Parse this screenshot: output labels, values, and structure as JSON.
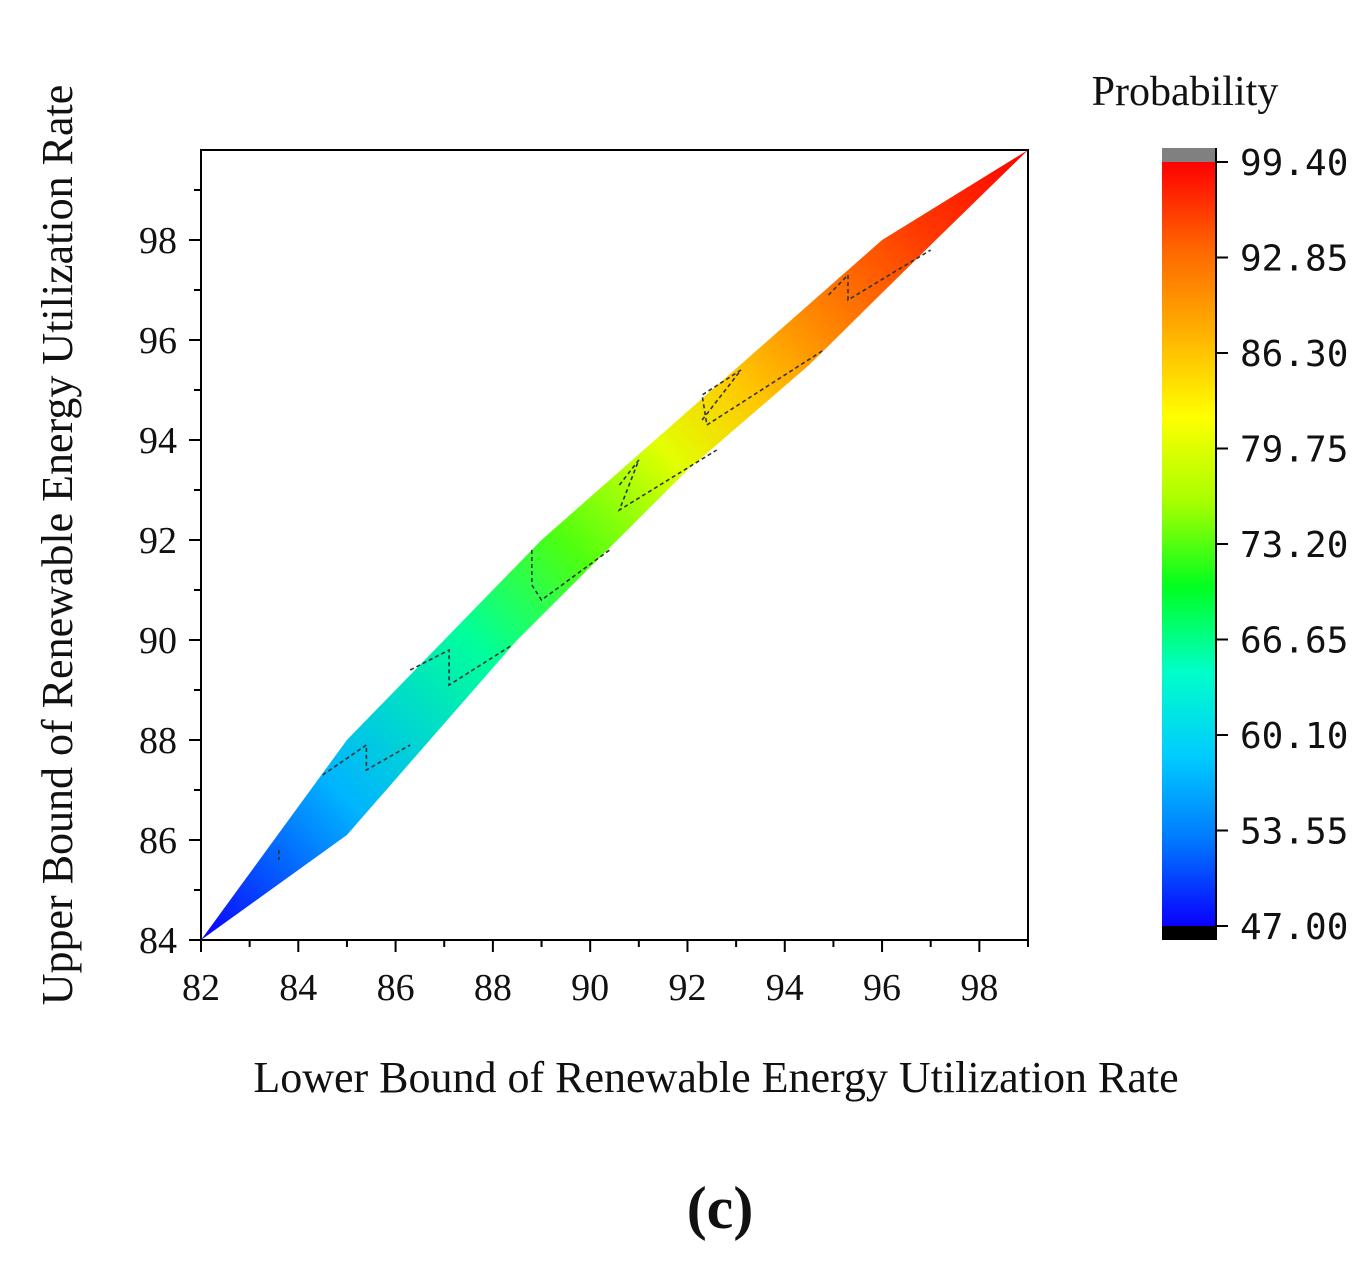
{
  "chart_data": {
    "type": "heatmap",
    "xlabel": "Lower Bound of Renewable Energy Utilization Rate",
    "ylabel": "Upper Bound of Renewable Energy Utilization Rate",
    "xlim": [
      82,
      99
    ],
    "ylim": [
      84,
      99.8
    ],
    "x_ticks": [
      82,
      84,
      86,
      88,
      90,
      92,
      94,
      96,
      98
    ],
    "y_ticks": [
      84,
      86,
      88,
      90,
      92,
      94,
      96,
      98
    ],
    "colorbar": {
      "title": "Probability",
      "min": 47.0,
      "max": 99.4,
      "ticks": [
        "99.40",
        "92.85",
        "86.30",
        "79.75",
        "73.20",
        "66.65",
        "60.10",
        "53.55",
        "47.00"
      ],
      "colors": [
        "#0a00ff",
        "#0077ff",
        "#00ccff",
        "#00ffc8",
        "#00ff1e",
        "#a8ff00",
        "#ffff00",
        "#ffb000",
        "#ff6400",
        "#ff0000"
      ]
    },
    "region": {
      "description_points_lower": [
        [
          82,
          84
        ],
        [
          85,
          86.1
        ],
        [
          88.5,
          90
        ],
        [
          92,
          93.4
        ],
        [
          94.5,
          95.5
        ],
        [
          97,
          97.9
        ],
        [
          99,
          99.8
        ]
      ],
      "description_points_upper": [
        [
          82,
          84
        ],
        [
          85,
          88
        ],
        [
          87,
          90
        ],
        [
          89,
          92
        ],
        [
          92.5,
          95
        ],
        [
          96,
          98
        ],
        [
          99,
          99.8
        ]
      ],
      "value_along_diagonal": [
        [
          82,
          47
        ],
        [
          85,
          57
        ],
        [
          88,
          66
        ],
        [
          90,
          73
        ],
        [
          92,
          80
        ],
        [
          93.5,
          86
        ],
        [
          95,
          91
        ],
        [
          97,
          96
        ],
        [
          99,
          99.4
        ]
      ]
    },
    "contours": [
      [
        [
          84.5,
          87.3
        ],
        [
          85.4,
          87.9
        ],
        [
          85.4,
          87.4
        ],
        [
          86.3,
          87.9
        ]
      ],
      [
        [
          86.3,
          89.4
        ],
        [
          87.1,
          89.8
        ],
        [
          87.1,
          89.1
        ],
        [
          88.4,
          89.9
        ]
      ],
      [
        [
          88.8,
          91.8
        ],
        [
          88.8,
          91.1
        ],
        [
          89.0,
          90.8
        ],
        [
          90.4,
          91.8
        ]
      ],
      [
        [
          90.6,
          93.1
        ],
        [
          91.0,
          93.6
        ],
        [
          90.6,
          92.6
        ],
        [
          92.6,
          93.8
        ]
      ],
      [
        [
          92.3,
          94.4
        ],
        [
          93.1,
          95.4
        ],
        [
          92.3,
          94.9
        ],
        [
          92.4,
          94.3
        ],
        [
          94.8,
          95.8
        ]
      ],
      [
        [
          94.9,
          96.9
        ],
        [
          95.3,
          97.3
        ],
        [
          95.3,
          96.8
        ],
        [
          97.0,
          97.8
        ]
      ],
      [
        [
          83.6,
          85.8
        ],
        [
          83.6,
          85.6
        ]
      ]
    ]
  },
  "figure_label": "(c)"
}
